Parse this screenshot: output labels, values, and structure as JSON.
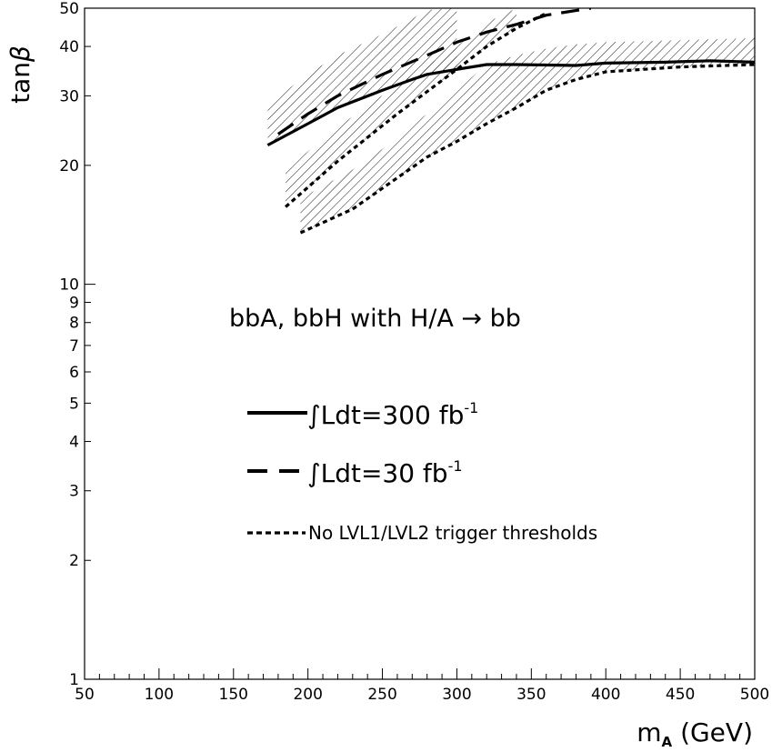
{
  "chart_data": {
    "type": "line",
    "xlabel_main": "m",
    "xlabel_sub": "A",
    "xlabel_unit": "(GeV)",
    "ylabel_main": "tan",
    "ylabel_greek": "β",
    "xlim": [
      50,
      500
    ],
    "ylim": [
      1,
      50
    ],
    "y_scale": "log",
    "grid": false,
    "x_major_ticks": [
      50,
      100,
      150,
      200,
      250,
      300,
      350,
      400,
      450,
      500
    ],
    "x_tick_labels": [
      "50",
      "100",
      "150",
      "200",
      "250",
      "300",
      "350",
      "400",
      "450",
      "500"
    ],
    "y_ticks": [
      1,
      2,
      3,
      4,
      5,
      6,
      7,
      8,
      9,
      10,
      20,
      30,
      40,
      50
    ],
    "y_tick_labels": [
      "1",
      "2",
      "3",
      "4",
      "5",
      "6",
      "7",
      "8",
      "9",
      "10",
      "20",
      "30",
      "40",
      "50"
    ],
    "annotation": "bbA, bbH with H/A → bb",
    "legend": {
      "placement": "center",
      "entries": [
        {
          "style": "solid",
          "integral": "∫",
          "label": "Ldt=300 fb",
          "sup": "-1"
        },
        {
          "style": "dashed",
          "integral": "∫",
          "label": "Ldt=30 fb",
          "sup": "-1"
        },
        {
          "style": "dotted",
          "label": "No LVL1/LVL2 trigger thresholds"
        }
      ]
    },
    "series": [
      {
        "style": "solid",
        "x": [
          173,
          200,
          220,
          250,
          270,
          280,
          300,
          320,
          340,
          380,
          400,
          440,
          470,
          500
        ],
        "y": [
          22.5,
          25.5,
          28.0,
          31.0,
          33.0,
          34.0,
          35.0,
          36.0,
          36.0,
          35.8,
          36.3,
          36.5,
          36.8,
          36.5
        ]
      },
      {
        "style": "dashed",
        "x": [
          180,
          200,
          220,
          250,
          280,
          300,
          320,
          340,
          360,
          390
        ],
        "y": [
          24.0,
          27.0,
          30.0,
          34.0,
          38.0,
          41.0,
          43.5,
          45.5,
          48.0,
          50.0
        ]
      },
      {
        "style": "dotted",
        "x": [
          185,
          220,
          260,
          300,
          320,
          340,
          360
        ],
        "y": [
          15.7,
          20.5,
          27.0,
          35.0,
          40.0,
          44.5,
          48.5
        ]
      },
      {
        "style": "dotted",
        "x": [
          195,
          230,
          250,
          280,
          300,
          320,
          340,
          360,
          380,
          400,
          450,
          500
        ],
        "y": [
          13.5,
          15.5,
          17.5,
          21.0,
          23.0,
          25.5,
          28.0,
          31.0,
          33.0,
          34.5,
          35.5,
          36.0
        ]
      }
    ],
    "bands": [
      {
        "x": [
          173,
          200,
          220,
          250,
          270,
          280,
          300
        ],
        "y_low": [
          22.5,
          25.5,
          28.0,
          31.0,
          33.0,
          34.0,
          35.0
        ],
        "y_high": [
          28.5,
          34.0,
          38.0,
          43.0,
          47.0,
          49.5,
          50.0
        ]
      },
      {
        "x": [
          185,
          220,
          260,
          300,
          320,
          340
        ],
        "y_low": [
          15.7,
          20.5,
          27.0,
          35.0,
          40.0,
          44.5
        ],
        "y_high": [
          19.5,
          25.0,
          32.0,
          40.0,
          46.0,
          50.0
        ]
      },
      {
        "x": [
          195,
          230,
          250,
          280,
          300,
          320,
          340,
          360,
          380,
          400,
          450,
          500
        ],
        "y_low": [
          13.5,
          15.5,
          17.5,
          21.0,
          23.0,
          25.5,
          28.0,
          31.0,
          33.0,
          34.5,
          35.5,
          36.0
        ],
        "y_high": [
          16.5,
          19.5,
          22.0,
          27.0,
          31.0,
          36.0,
          38.0,
          39.5,
          40.5,
          41.0,
          41.5,
          42.0
        ]
      }
    ]
  }
}
